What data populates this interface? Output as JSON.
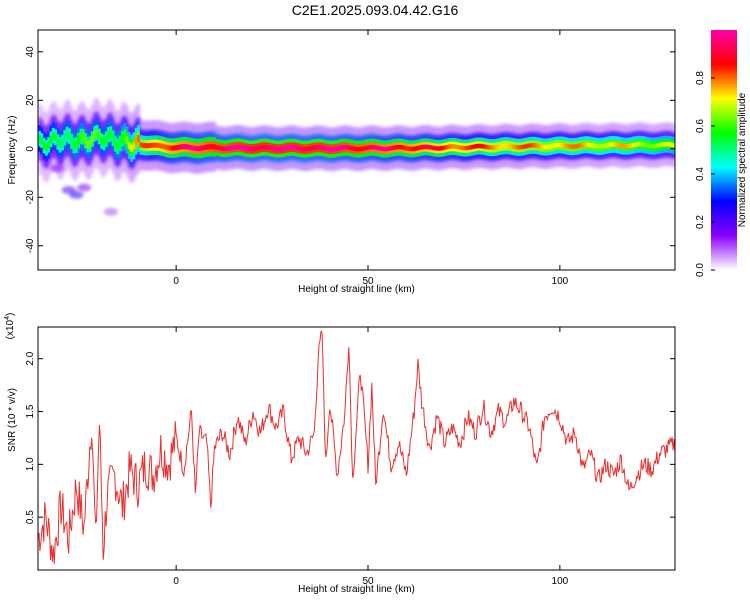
{
  "title": "C2E1.2025.093.04.42.G16",
  "chart_data": [
    {
      "type": "heatmap",
      "xlabel": "Height of straight line (km)",
      "ylabel": "Frequency (Hz)",
      "xlim": [
        -36,
        130
      ],
      "ylim": [
        -50,
        49
      ],
      "xticks": [
        0,
        50,
        100
      ],
      "yticks": [
        -40,
        -20,
        0,
        20,
        40
      ],
      "xtick_labels": [
        "0",
        "50",
        "100"
      ],
      "ytick_labels": [
        "-40",
        "-20",
        "0",
        "20",
        "40"
      ],
      "grid": false,
      "colorbar": {
        "label": "Normalized spectral amplitude",
        "range": [
          0,
          1
        ],
        "ticks": [
          0.0,
          0.2,
          0.4,
          0.6,
          0.8
        ],
        "tick_labels": [
          "0.0",
          "0.2",
          "0.4",
          "0.6",
          "0.8"
        ],
        "colormap": [
          "#ffffff",
          "#8a00ff",
          "#0000ff",
          "#00ffff",
          "#00ff00",
          "#ffff00",
          "#ff0000",
          "#ff00aa"
        ]
      },
      "ridge": {
        "height_km": [
          -36,
          -30,
          -25,
          -20,
          -15,
          -10,
          -5,
          0,
          10,
          20,
          40,
          60,
          80,
          100,
          120,
          130
        ],
        "frequency_hz": [
          2,
          4,
          3,
          5,
          3,
          2,
          1,
          0.5,
          0.5,
          0.3,
          0.2,
          0.3,
          0.8,
          1.2,
          1.5,
          1.5
        ],
        "amplitude": [
          0.5,
          0.55,
          0.6,
          0.55,
          0.6,
          0.75,
          0.85,
          0.9,
          0.95,
          0.98,
          0.97,
          0.9,
          0.8,
          0.75,
          0.7,
          0.65
        ]
      },
      "scatter_patches": [
        {
          "height_km": -31,
          "frequency_hz": -8,
          "amplitude": 0.15
        },
        {
          "height_km": -28,
          "frequency_hz": -17,
          "amplitude": 0.2
        },
        {
          "height_km": -26,
          "frequency_hz": -19,
          "amplitude": 0.25
        },
        {
          "height_km": -24,
          "frequency_hz": -16,
          "amplitude": 0.15
        },
        {
          "height_km": -17,
          "frequency_hz": -26,
          "amplitude": 0.1
        }
      ]
    },
    {
      "type": "line",
      "xlabel": "Height of straight line (km)",
      "ylabel": "SNR (10 * v/v)",
      "scale_label": "(x10^4)",
      "scale_base": "(x10",
      "scale_exp": "4",
      "scale_close": ")",
      "xlim": [
        -36,
        130
      ],
      "ylim": [
        0,
        2.3
      ],
      "xticks": [
        0,
        50,
        100
      ],
      "yticks": [
        0.5,
        1.0,
        1.5,
        2.0
      ],
      "xtick_labels": [
        "0",
        "50",
        "100"
      ],
      "ytick_labels": [
        "0.5",
        "1.0",
        "1.5",
        "2.0"
      ],
      "grid": false,
      "series": [
        {
          "color": "#e8302e",
          "x": [
            -36,
            -34,
            -32,
            -30,
            -28,
            -26,
            -24,
            -22,
            -21,
            -20,
            -19,
            -18,
            -16,
            -14,
            -12,
            -10,
            -8,
            -6,
            -4,
            -2,
            0,
            2,
            4,
            5,
            6,
            8,
            9,
            10,
            12,
            14,
            16,
            18,
            20,
            22,
            24,
            26,
            28,
            30,
            32,
            34,
            36,
            37,
            38,
            39,
            40,
            42,
            44,
            45,
            46,
            48,
            50,
            51,
            52,
            54,
            55,
            56,
            58,
            60,
            62,
            63,
            64,
            66,
            68,
            70,
            72,
            74,
            76,
            78,
            80,
            82,
            84,
            86,
            88,
            90,
            92,
            94,
            96,
            98,
            100,
            102,
            104,
            106,
            108,
            110,
            112,
            114,
            116,
            118,
            120,
            122,
            124,
            126,
            128,
            130
          ],
          "y": [
            0.3,
            0.5,
            0.15,
            0.6,
            0.3,
            0.8,
            0.4,
            1.45,
            0.25,
            1.4,
            0.2,
            0.7,
            0.9,
            0.6,
            0.95,
            0.8,
            1.0,
            0.9,
            1.15,
            1.0,
            1.25,
            0.95,
            1.5,
            0.7,
            1.3,
            1.2,
            0.6,
            1.15,
            1.3,
            1.1,
            1.45,
            1.2,
            1.5,
            1.3,
            1.55,
            1.35,
            1.5,
            1.05,
            1.25,
            1.1,
            1.3,
            2.0,
            2.25,
            1.0,
            1.6,
            0.9,
            1.5,
            2.2,
            0.85,
            1.9,
            1.0,
            1.75,
            0.8,
            1.55,
            1.25,
            1.0,
            1.2,
            0.9,
            1.5,
            1.95,
            1.6,
            1.15,
            1.45,
            1.2,
            1.35,
            1.2,
            1.45,
            1.3,
            1.55,
            1.3,
            1.5,
            1.4,
            1.6,
            1.5,
            1.35,
            0.95,
            1.45,
            1.55,
            1.45,
            1.2,
            1.3,
            0.95,
            1.1,
            0.85,
            1.0,
            0.9,
            1.05,
            0.75,
            0.9,
            1.0,
            0.95,
            1.1,
            1.15,
            1.2
          ]
        }
      ]
    }
  ]
}
